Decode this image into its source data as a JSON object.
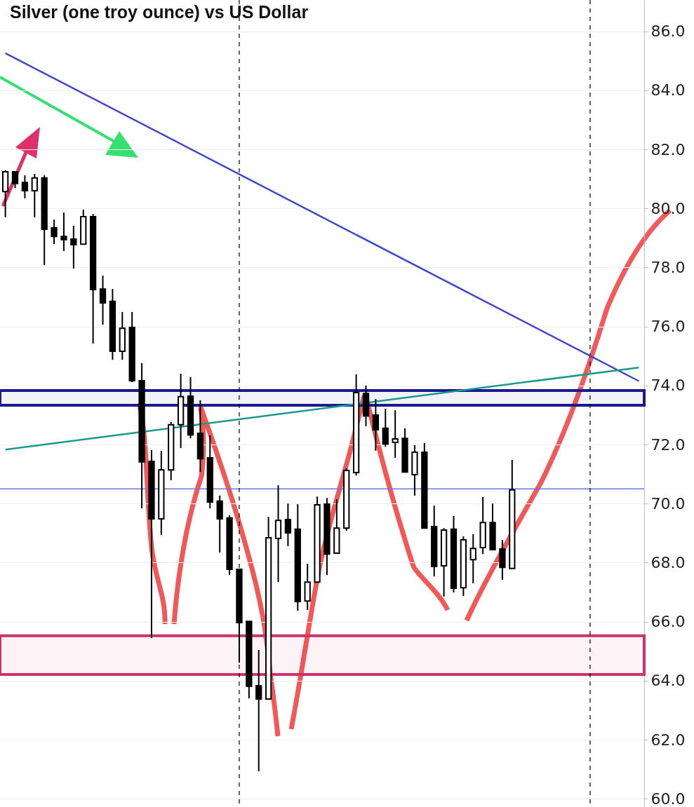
{
  "chart_data": {
    "type": "candlestick",
    "title": "Silver (one troy ounce) vs US Dollar",
    "categories": [
      null,
      null,
      null,
      null,
      null,
      null,
      null,
      null,
      null,
      null,
      null,
      null,
      null,
      null,
      null,
      null,
      null,
      null,
      null,
      null,
      null,
      null,
      null,
      null,
      null,
      null,
      null,
      null,
      null,
      null,
      null,
      null,
      null,
      null,
      null,
      null,
      null,
      null,
      null,
      null,
      null,
      null,
      null,
      null,
      null,
      null,
      null,
      null,
      null,
      null,
      null,
      null,
      null,
      null,
      null,
      null,
      null,
      null,
      null,
      null,
      null,
      null,
      null,
      null,
      null,
      null
    ],
    "ohlc": [
      [
        80.57,
        81.29,
        79.7,
        81.24
      ],
      [
        81.24,
        81.26,
        80.69,
        80.84
      ],
      [
        80.88,
        81.12,
        80.34,
        80.6
      ],
      [
        80.6,
        81.17,
        79.7,
        81.03
      ],
      [
        81.03,
        81.12,
        78.08,
        79.29
      ],
      [
        79.34,
        79.62,
        78.79,
        79.05
      ],
      [
        79.05,
        79.86,
        78.56,
        78.94
      ],
      [
        78.96,
        79.41,
        77.96,
        78.77
      ],
      [
        78.79,
        79.96,
        78.79,
        79.72
      ],
      [
        79.72,
        79.81,
        75.42,
        77.25
      ],
      [
        77.27,
        77.72,
        76.06,
        76.8
      ],
      [
        76.85,
        77.27,
        74.87,
        75.16
      ],
      [
        75.16,
        76.49,
        74.87,
        75.94
      ],
      [
        75.97,
        76.49,
        74.11,
        74.16
      ],
      [
        74.16,
        74.76,
        69.84,
        71.41
      ],
      [
        71.43,
        71.81,
        65.44,
        69.48
      ],
      [
        69.48,
        71.79,
        68.94,
        71.14
      ],
      [
        71.14,
        72.76,
        70.79,
        72.67
      ],
      [
        72.67,
        74.4,
        71.88,
        73.62
      ],
      [
        73.64,
        74.28,
        72.21,
        72.33
      ],
      [
        72.38,
        73.5,
        71.07,
        71.52
      ],
      [
        71.55,
        72.31,
        69.84,
        70.05
      ],
      [
        70.08,
        70.27,
        68.34,
        69.48
      ],
      [
        69.51,
        69.6,
        67.58,
        67.77
      ],
      [
        67.77,
        67.77,
        64.61,
        65.97
      ],
      [
        66.01,
        66.01,
        63.4,
        63.81
      ],
      [
        63.83,
        65.04,
        60.93,
        63.38
      ],
      [
        63.38,
        69.55,
        63.38,
        68.84
      ],
      [
        68.82,
        70.62,
        67.34,
        69.43
      ],
      [
        69.46,
        70.0,
        68.56,
        69.01
      ],
      [
        69.13,
        69.98,
        66.37,
        66.68
      ],
      [
        66.7,
        67.96,
        66.39,
        67.34
      ],
      [
        67.34,
        70.24,
        67.34,
        69.96
      ],
      [
        69.98,
        70.19,
        67.58,
        68.29
      ],
      [
        68.32,
        70.15,
        68.32,
        69.17
      ],
      [
        69.17,
        71.19,
        69.08,
        71.12
      ],
      [
        71.05,
        74.38,
        70.95,
        73.76
      ],
      [
        73.73,
        74.0,
        72.62,
        72.97
      ],
      [
        73.0,
        73.54,
        71.79,
        72.5
      ],
      [
        72.55,
        73.21,
        71.93,
        72.02
      ],
      [
        72.07,
        73.16,
        71.55,
        72.19
      ],
      [
        72.21,
        72.55,
        71.07,
        71.07
      ],
      [
        70.98,
        71.98,
        70.27,
        71.74
      ],
      [
        71.74,
        72.05,
        69.17,
        69.17
      ],
      [
        69.22,
        69.93,
        67.53,
        67.87
      ],
      [
        67.89,
        69.17,
        66.85,
        69.1
      ],
      [
        69.13,
        69.58,
        66.99,
        67.13
      ],
      [
        67.15,
        68.89,
        66.87,
        68.77
      ],
      [
        68.1,
        68.96,
        67.3,
        68.48
      ],
      [
        68.51,
        70.22,
        68.29,
        69.36
      ],
      [
        69.36,
        70.0,
        68.44,
        68.44
      ],
      [
        68.46,
        68.77,
        67.42,
        67.84
      ],
      [
        67.8,
        71.48,
        67.8,
        70.46
      ],
      null,
      null,
      null,
      null,
      null,
      null,
      null,
      null,
      null,
      null,
      null,
      null,
      null
    ],
    "series": [
      {
        "type": "line",
        "color": "#3f48cc",
        "values": [
          85.26,
          null,
          null,
          null,
          null,
          null,
          null,
          null,
          null,
          null,
          null,
          null,
          null,
          null,
          null,
          null,
          null,
          null,
          null,
          null,
          null,
          null,
          null,
          null,
          null,
          null,
          null,
          null,
          null,
          null,
          null,
          null,
          null,
          null,
          null,
          null,
          null,
          null,
          null,
          null,
          null,
          null,
          null,
          null,
          null,
          null,
          null,
          null,
          null,
          null,
          null,
          null,
          null,
          null,
          null,
          null,
          null,
          null,
          null,
          null,
          null,
          null,
          null,
          null,
          null,
          74.15
        ]
      },
      {
        "type": "line",
        "color": "#1a9a8a",
        "values": [
          71.83,
          null,
          null,
          null,
          null,
          null,
          null,
          null,
          null,
          null,
          null,
          null,
          null,
          null,
          null,
          null,
          null,
          null,
          null,
          null,
          null,
          null,
          null,
          null,
          null,
          null,
          null,
          null,
          null,
          null,
          null,
          null,
          null,
          null,
          null,
          null,
          null,
          null,
          null,
          null,
          null,
          null,
          null,
          null,
          null,
          null,
          null,
          null,
          null,
          null,
          null,
          null,
          null,
          null,
          null,
          null,
          null,
          null,
          null,
          null,
          null,
          null,
          null,
          null,
          null,
          74.61
        ]
      }
    ],
    "bands": [
      {
        "axis": "y",
        "from": 73.33,
        "to": 73.83,
        "color": "#1a1a8c"
      },
      {
        "axis": "y",
        "from": 64.21,
        "to": 65.52,
        "color": "#d0306a"
      }
    ],
    "ref_lines": [
      {
        "axis": "y",
        "value": 70.5,
        "color": "#6a78e0"
      }
    ],
    "ylim": [
      59.72,
      87.06
    ],
    "yticks": [
      {
        "value": 60,
        "label": "60.0"
      },
      {
        "value": 62,
        "label": "62.0"
      },
      {
        "value": 64,
        "label": "64.0"
      },
      {
        "value": 66,
        "label": "66.0"
      },
      {
        "value": 68,
        "label": "68.0"
      },
      {
        "value": 70,
        "label": "70.0"
      },
      {
        "value": 72,
        "label": "72.0"
      },
      {
        "value": 74,
        "label": "74.0"
      },
      {
        "value": 76,
        "label": "76.0"
      },
      {
        "value": 78,
        "label": "78.0"
      },
      {
        "value": 80,
        "label": "80.0"
      },
      {
        "value": 82,
        "label": "82.0"
      },
      {
        "value": 84,
        "label": "84.0"
      },
      {
        "value": 86,
        "label": "86.0"
      }
    ],
    "grid": true
  }
}
